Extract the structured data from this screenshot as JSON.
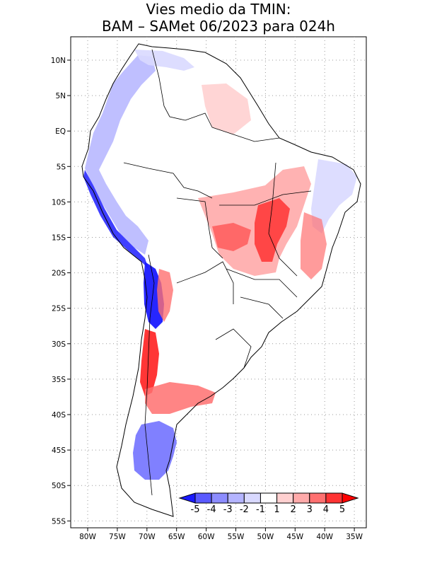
{
  "title": {
    "line1": "Vies medio da TMIN:",
    "line2": "BAM – SAMet 06/2023  para 024h"
  },
  "axes": {
    "lon_ticks": [
      "80W",
      "75W",
      "70W",
      "65W",
      "60W",
      "55W",
      "50W",
      "45W",
      "40W",
      "35W"
    ],
    "lat_ticks": [
      "10N",
      "5N",
      "EQ",
      "5S",
      "10S",
      "15S",
      "20S",
      "25S",
      "30S",
      "35S",
      "40S",
      "45S",
      "50S",
      "55S"
    ],
    "lon_range": [
      -82,
      -34
    ],
    "lat_range": [
      13,
      -56
    ]
  },
  "colorbar": {
    "labels": [
      "-5",
      "-4",
      "-3",
      "-2",
      "-1",
      "1",
      "2",
      "3",
      "4",
      "5"
    ],
    "colors": [
      "#1a1aff",
      "#5a5aff",
      "#8c8cff",
      "#b4b4ff",
      "#d9d9ff",
      "#ffffff",
      "#ffd0d0",
      "#ffaaaa",
      "#ff7070",
      "#ff3333",
      "#ff0000"
    ]
  },
  "map_colors": {
    "coast": "#000000",
    "grid": "#999999"
  }
}
